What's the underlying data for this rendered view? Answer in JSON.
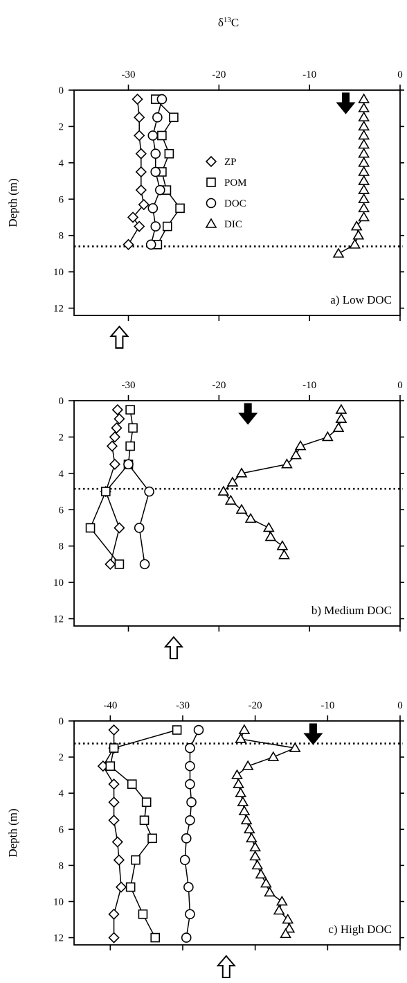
{
  "figure": {
    "top_label_main": "δ",
    "top_label_sup": "13",
    "top_label_tail": "C"
  },
  "chart_data": [
    {
      "type": "line",
      "panel_label": "a) Low DOC",
      "ylabel": "Depth (m)",
      "x_axis_position": "top",
      "xlim": [
        -36,
        0
      ],
      "ylim": [
        0,
        12.4
      ],
      "y_inverted": true,
      "xticks": [
        -30,
        -20,
        -10,
        0
      ],
      "yticks": [
        0,
        2,
        4,
        6,
        8,
        10,
        12
      ],
      "legend": {
        "placement": "upper-middle",
        "entries": [
          {
            "name": "ZP",
            "marker": "diamond"
          },
          {
            "name": "POM",
            "marker": "square"
          },
          {
            "name": "DOC",
            "marker": "circle"
          },
          {
            "name": "DIC",
            "marker": "triangle"
          }
        ]
      },
      "dotted_line_depth": 8.6,
      "filled_arrow_x": -6,
      "open_arrow_x": -31,
      "series": [
        {
          "name": "ZP",
          "marker": "diamond",
          "points": [
            [
              -29.0,
              0.5
            ],
            [
              -28.8,
              1.5
            ],
            [
              -28.8,
              2.5
            ],
            [
              -28.6,
              3.5
            ],
            [
              -28.6,
              4.5
            ],
            [
              -28.6,
              5.5
            ],
            [
              -28.3,
              6.3
            ],
            [
              -29.5,
              7.0
            ],
            [
              -28.8,
              7.5
            ],
            [
              -30.0,
              8.5
            ]
          ]
        },
        {
          "name": "POM",
          "marker": "square",
          "points": [
            [
              -27.0,
              0.5
            ],
            [
              -25.0,
              1.5
            ],
            [
              -26.3,
              2.5
            ],
            [
              -25.5,
              3.5
            ],
            [
              -26.3,
              4.5
            ],
            [
              -25.8,
              5.5
            ],
            [
              -24.3,
              6.5
            ],
            [
              -25.7,
              7.5
            ],
            [
              -26.8,
              8.5
            ]
          ]
        },
        {
          "name": "DOC",
          "marker": "circle",
          "points": [
            [
              -26.3,
              0.5
            ],
            [
              -26.8,
              1.5
            ],
            [
              -27.3,
              2.5
            ],
            [
              -27.0,
              3.5
            ],
            [
              -27.0,
              4.5
            ],
            [
              -26.5,
              5.5
            ],
            [
              -27.3,
              6.5
            ],
            [
              -27.0,
              7.5
            ],
            [
              -27.5,
              8.5
            ]
          ]
        },
        {
          "name": "DIC",
          "marker": "triangle",
          "points": [
            [
              -4.0,
              0.5
            ],
            [
              -4.0,
              1.0
            ],
            [
              -4.0,
              1.5
            ],
            [
              -4.0,
              2.0
            ],
            [
              -4.0,
              2.5
            ],
            [
              -4.0,
              3.0
            ],
            [
              -4.0,
              3.5
            ],
            [
              -4.0,
              4.0
            ],
            [
              -4.0,
              4.5
            ],
            [
              -4.0,
              5.0
            ],
            [
              -4.0,
              5.5
            ],
            [
              -4.0,
              6.0
            ],
            [
              -4.0,
              6.5
            ],
            [
              -4.0,
              7.0
            ],
            [
              -4.8,
              7.5
            ],
            [
              -4.6,
              8.0
            ],
            [
              -5.0,
              8.5
            ],
            [
              -6.8,
              9.0
            ]
          ]
        }
      ]
    },
    {
      "type": "line",
      "panel_label": "b) Medium DOC",
      "ylabel": "",
      "x_axis_position": "top",
      "xlim": [
        -36,
        0
      ],
      "ylim": [
        0,
        12.4
      ],
      "y_inverted": true,
      "xticks": [
        -30,
        -20,
        -10,
        0
      ],
      "yticks": [
        0,
        2,
        4,
        6,
        8,
        10,
        12
      ],
      "dotted_line_depth": 4.85,
      "filled_arrow_x": -16.8,
      "open_arrow_x": -25,
      "series": [
        {
          "name": "ZP",
          "marker": "diamond",
          "points": [
            [
              -31.2,
              0.5
            ],
            [
              -31.0,
              1.0
            ],
            [
              -31.3,
              1.5
            ],
            [
              -31.5,
              2.0
            ],
            [
              -31.8,
              2.5
            ],
            [
              -31.5,
              3.5
            ],
            [
              -32.5,
              5.0
            ],
            [
              -31.0,
              7.0
            ],
            [
              -32.0,
              9.0
            ]
          ]
        },
        {
          "name": "POM",
          "marker": "square",
          "points": [
            [
              -29.8,
              0.5
            ],
            [
              -29.5,
              1.5
            ],
            [
              -29.8,
              2.5
            ],
            [
              -30.0,
              3.5
            ],
            [
              -32.5,
              5.0
            ],
            [
              -34.2,
              7.0
            ],
            [
              -31.0,
              9.0
            ]
          ]
        },
        {
          "name": "DOC",
          "marker": "circle",
          "points": [
            [
              -30.0,
              3.5
            ],
            [
              -27.7,
              5.0
            ],
            [
              -28.8,
              7.0
            ],
            [
              -28.2,
              9.0
            ]
          ]
        },
        {
          "name": "DIC",
          "marker": "triangle",
          "points": [
            [
              -6.5,
              0.5
            ],
            [
              -6.5,
              1.0
            ],
            [
              -6.8,
              1.5
            ],
            [
              -8.0,
              2.0
            ],
            [
              -11.0,
              2.5
            ],
            [
              -11.5,
              3.0
            ],
            [
              -12.5,
              3.5
            ],
            [
              -17.5,
              4.0
            ],
            [
              -18.5,
              4.5
            ],
            [
              -19.5,
              5.0
            ],
            [
              -18.7,
              5.5
            ],
            [
              -17.5,
              6.0
            ],
            [
              -16.5,
              6.5
            ],
            [
              -14.5,
              7.0
            ],
            [
              -14.3,
              7.5
            ],
            [
              -13.0,
              8.0
            ],
            [
              -12.8,
              8.5
            ]
          ]
        }
      ]
    },
    {
      "type": "line",
      "panel_label": "c) High DOC",
      "ylabel": "Depth (m)",
      "x_axis_position": "top",
      "xlim": [
        -45,
        0
      ],
      "ylim": [
        0,
        12.4
      ],
      "y_inverted": true,
      "xticks": [
        -40,
        -30,
        -20,
        -10,
        0
      ],
      "yticks": [
        0,
        2,
        4,
        6,
        8,
        10,
        12
      ],
      "dotted_line_depth": 1.25,
      "filled_arrow_x": -12,
      "open_arrow_x": -24,
      "series": [
        {
          "name": "ZP",
          "marker": "diamond",
          "points": [
            [
              -39.5,
              0.5
            ],
            [
              -39.5,
              1.5
            ],
            [
              -41.0,
              2.5
            ],
            [
              -39.5,
              3.5
            ],
            [
              -39.5,
              4.5
            ],
            [
              -39.5,
              5.5
            ],
            [
              -39.0,
              6.7
            ],
            [
              -38.8,
              7.7
            ],
            [
              -38.5,
              9.2
            ],
            [
              -39.5,
              10.7
            ],
            [
              -39.5,
              12.0
            ]
          ]
        },
        {
          "name": "POM",
          "marker": "square",
          "points": [
            [
              -30.8,
              0.5
            ],
            [
              -39.5,
              1.5
            ],
            [
              -40.0,
              2.5
            ],
            [
              -37.0,
              3.5
            ],
            [
              -35.0,
              4.5
            ],
            [
              -35.3,
              5.5
            ],
            [
              -34.2,
              6.5
            ],
            [
              -36.5,
              7.7
            ],
            [
              -37.2,
              9.2
            ],
            [
              -35.5,
              10.7
            ],
            [
              -33.8,
              12.0
            ]
          ]
        },
        {
          "name": "DOC",
          "marker": "circle",
          "points": [
            [
              -27.8,
              0.5
            ],
            [
              -29.0,
              1.5
            ],
            [
              -29.0,
              2.5
            ],
            [
              -29.0,
              3.5
            ],
            [
              -28.8,
              4.5
            ],
            [
              -29.0,
              5.5
            ],
            [
              -29.5,
              6.5
            ],
            [
              -29.7,
              7.7
            ],
            [
              -29.2,
              9.2
            ],
            [
              -29.0,
              10.7
            ],
            [
              -29.5,
              12.0
            ]
          ]
        },
        {
          "name": "DIC",
          "marker": "triangle",
          "points": [
            [
              -21.5,
              0.5
            ],
            [
              -22.0,
              1.0
            ],
            [
              -14.5,
              1.5
            ],
            [
              -17.5,
              2.0
            ],
            [
              -21.0,
              2.5
            ],
            [
              -22.5,
              3.0
            ],
            [
              -22.3,
              3.5
            ],
            [
              -22.0,
              4.0
            ],
            [
              -21.7,
              4.5
            ],
            [
              -21.5,
              5.0
            ],
            [
              -21.2,
              5.5
            ],
            [
              -20.8,
              6.0
            ],
            [
              -20.5,
              6.5
            ],
            [
              -20.0,
              7.0
            ],
            [
              -20.0,
              7.5
            ],
            [
              -19.7,
              8.0
            ],
            [
              -19.2,
              8.5
            ],
            [
              -18.5,
              9.0
            ],
            [
              -18.0,
              9.5
            ],
            [
              -16.3,
              10.0
            ],
            [
              -16.7,
              10.5
            ],
            [
              -15.5,
              11.0
            ],
            [
              -15.3,
              11.5
            ],
            [
              -15.8,
              11.8
            ]
          ]
        }
      ]
    }
  ]
}
